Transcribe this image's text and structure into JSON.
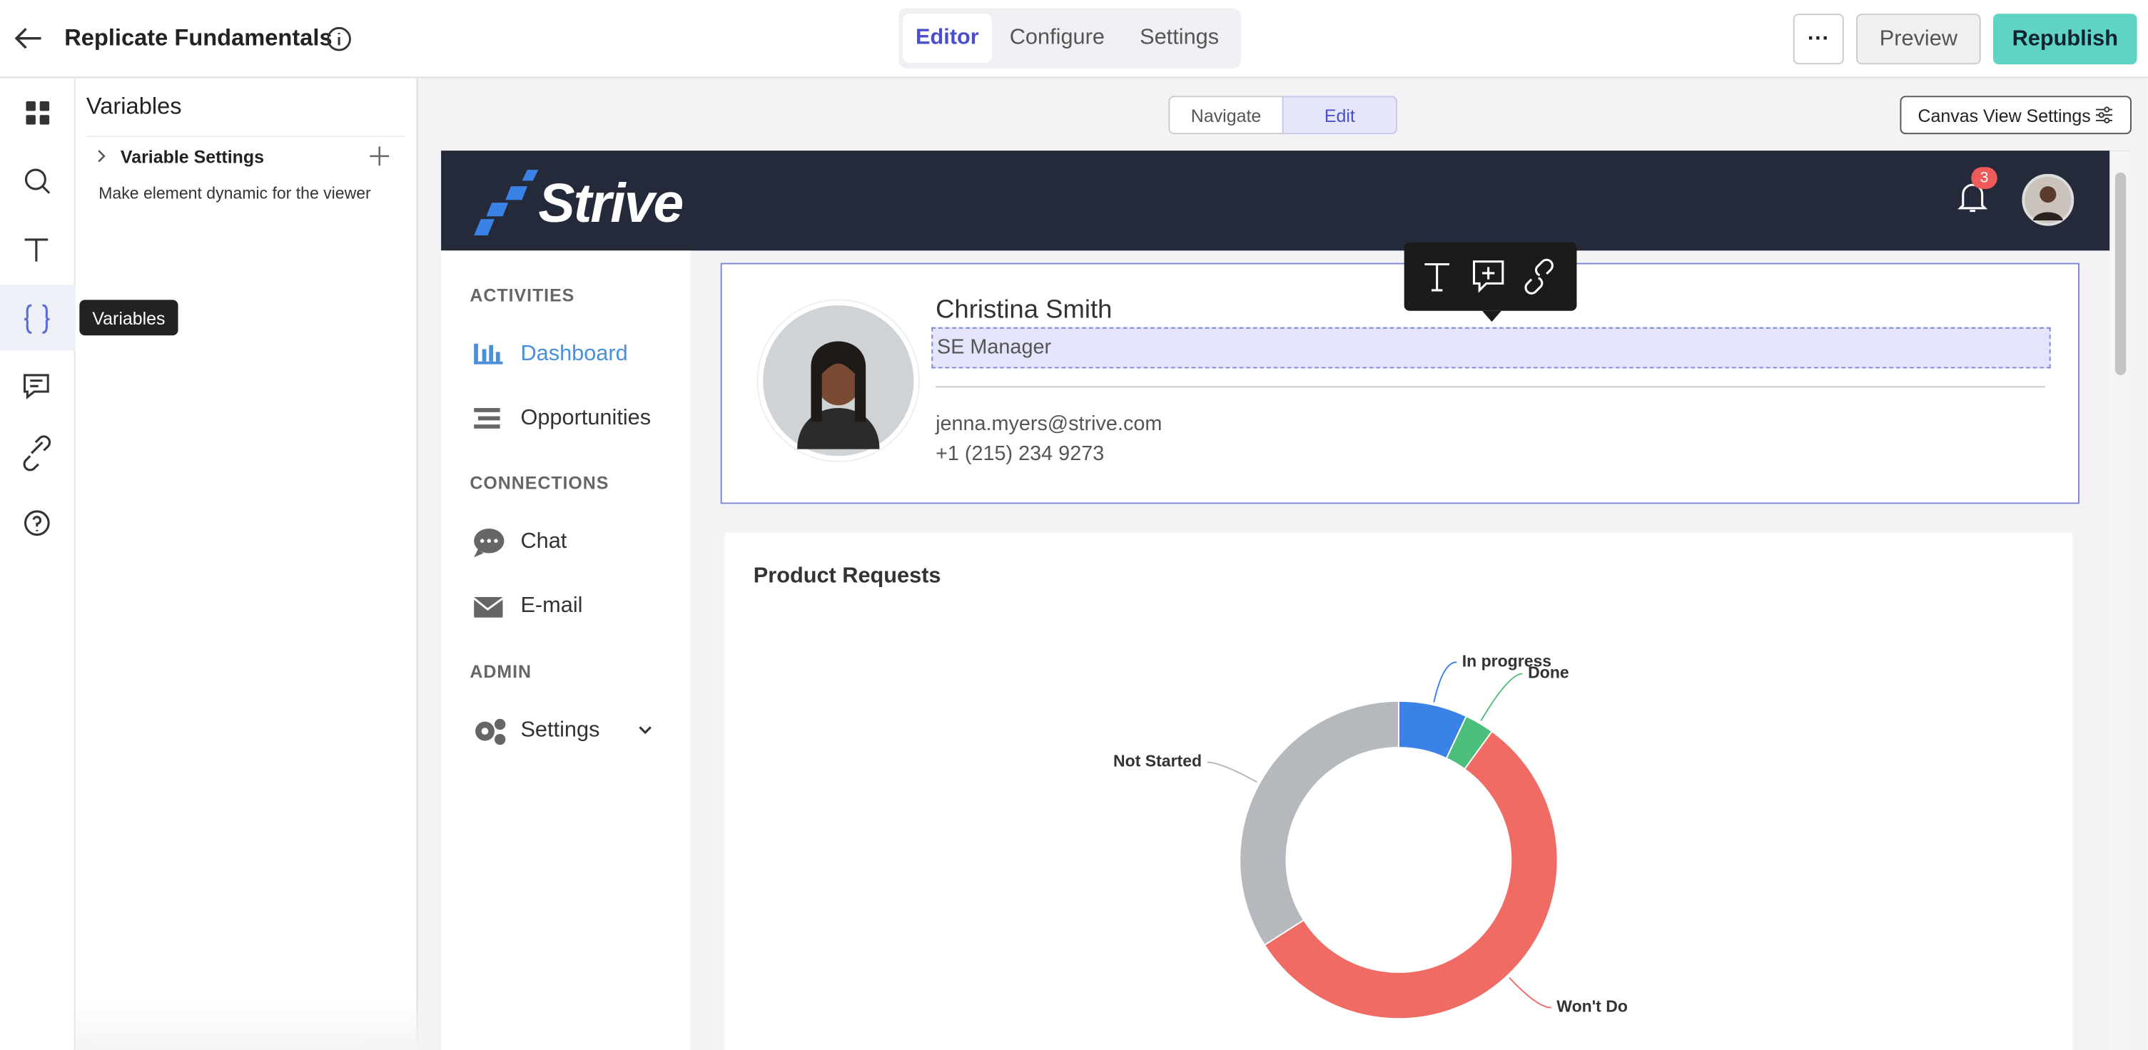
{
  "header": {
    "title": "Replicate Fundamentals",
    "tabs": [
      "Editor",
      "Configure",
      "Settings"
    ],
    "more": "···",
    "preview": "Preview",
    "republish": "Republish"
  },
  "sidebar": {
    "tooltip": "Variables"
  },
  "panel": {
    "title": "Variables",
    "section": "Variable Settings",
    "description": "Make element dynamic for the viewer"
  },
  "canvas": {
    "modes": [
      "Navigate",
      "Edit"
    ],
    "view_settings": "Canvas View Settings"
  },
  "app": {
    "brand": "Strive",
    "notifications": "3",
    "nav": [
      {
        "heading": "ACTIVITIES",
        "items": [
          "Dashboard",
          "Opportunities"
        ]
      },
      {
        "heading": "CONNECTIONS",
        "items": [
          "Chat",
          "E-mail"
        ]
      },
      {
        "heading": "ADMIN",
        "items": [
          "Settings"
        ]
      }
    ],
    "profile": {
      "name": "Christina Smith",
      "role": "SE Manager",
      "email": "jenna.myers@strive.com",
      "phone": "+1 (215) 234 9273"
    }
  },
  "chart_data": {
    "type": "pie",
    "donut": true,
    "title": "Product Requests",
    "categories": [
      "In progress",
      "Done",
      "Won't Do",
      "Not Started"
    ],
    "values": [
      7,
      3,
      56,
      34
    ],
    "colors": [
      "#3b82e6",
      "#4cbf7c",
      "#ef6b63",
      "#b5b8bd"
    ]
  }
}
